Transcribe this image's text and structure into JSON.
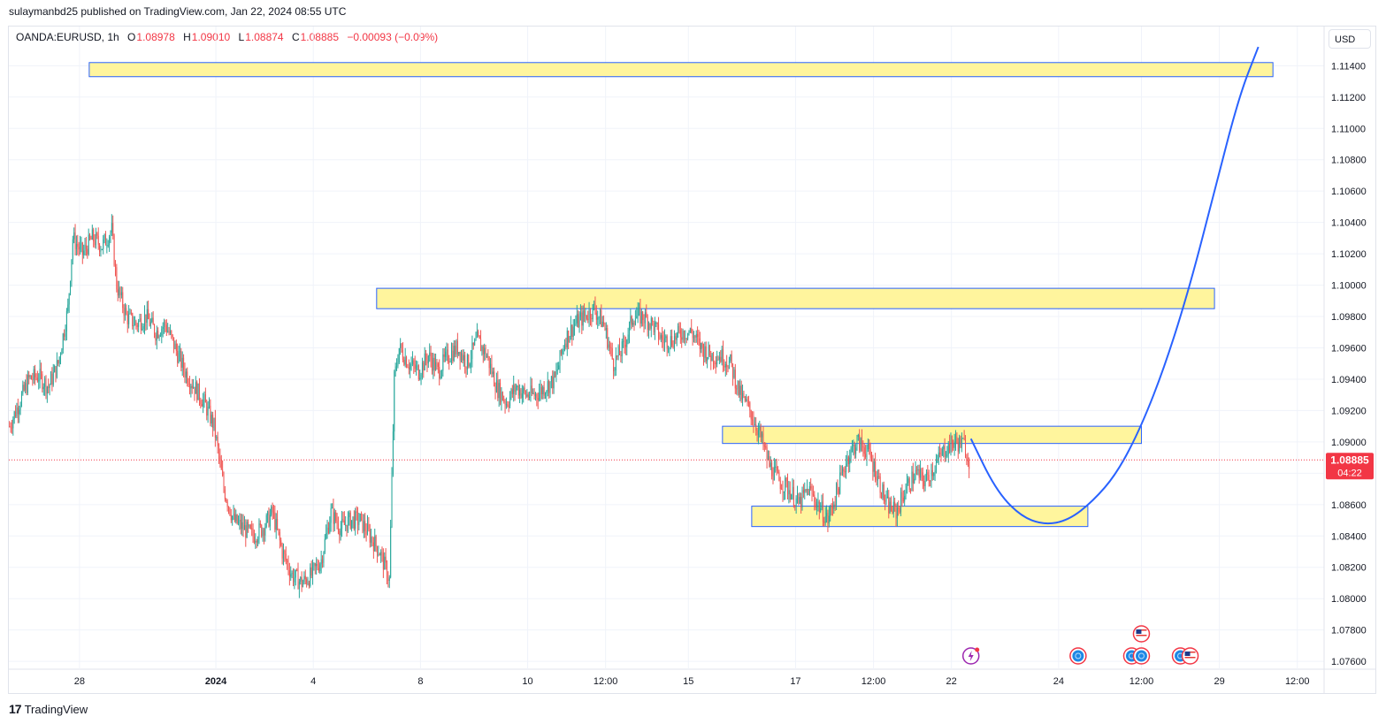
{
  "header": {
    "published": "sulaymanbd25 published on TradingView.com, Jan 22, 2024 08:55 UTC"
  },
  "symbol": {
    "name": "OANDA:EURUSD, 1h",
    "open_label": "O",
    "open": "1.08978",
    "high_label": "H",
    "high": "1.09010",
    "low_label": "L",
    "low": "1.08874",
    "close_label": "C",
    "close": "1.08885",
    "change": "−0.00093 (−0.09%)"
  },
  "currency": "USD",
  "price_tag": {
    "price": "1.08885",
    "countdown": "04:22",
    "color": "#f23645"
  },
  "footer": {
    "brand": "TradingView"
  },
  "colors": {
    "up": "#26a69a",
    "down": "#ef5350",
    "zone_fill": "#fff59d",
    "zone_border": "#2962ff",
    "projection": "#2962ff"
  },
  "chart_data": {
    "type": "candlestick",
    "timeframe": "1h",
    "ylim": [
      1.0755,
      1.1165
    ],
    "y_ticks": [
      "1.11400",
      "1.11200",
      "1.11000",
      "1.10800",
      "1.10600",
      "1.10400",
      "1.10200",
      "1.10000",
      "1.09800",
      "1.09600",
      "1.09400",
      "1.09200",
      "1.09000",
      "1.08800",
      "1.08600",
      "1.08400",
      "1.08200",
      "1.08000",
      "1.07800",
      "1.07600"
    ],
    "x_ticks": [
      {
        "label": "28",
        "i": 14,
        "bold": false
      },
      {
        "label": "2024",
        "i": 42,
        "bold": true
      },
      {
        "label": "4",
        "i": 62,
        "bold": false
      },
      {
        "label": "8",
        "i": 84,
        "bold": false
      },
      {
        "label": "10",
        "i": 106,
        "bold": false
      },
      {
        "label": "12:00",
        "i": 122,
        "bold": false
      },
      {
        "label": "15",
        "i": 139,
        "bold": false
      },
      {
        "label": "17",
        "i": 161,
        "bold": false
      },
      {
        "label": "12:00",
        "i": 177,
        "bold": false
      },
      {
        "label": "22",
        "i": 193,
        "bold": false
      },
      {
        "label": "24",
        "i": 215,
        "bold": false
      },
      {
        "label": "12:00",
        "i": 232,
        "bold": false
      },
      {
        "label": "29",
        "i": 248,
        "bold": false
      },
      {
        "label": "12:00",
        "i": 264,
        "bold": false
      }
    ],
    "close_path": [
      [
        0,
        1.091
      ],
      [
        2,
        1.0925
      ],
      [
        4,
        1.094
      ],
      [
        6,
        1.0942
      ],
      [
        8,
        1.0935
      ],
      [
        10,
        1.095
      ],
      [
        12,
        1.0985
      ],
      [
        13,
        1.103
      ],
      [
        15,
        1.102
      ],
      [
        17,
        1.103
      ],
      [
        19,
        1.1025
      ],
      [
        21,
        1.1035
      ],
      [
        22,
        1.1
      ],
      [
        24,
        1.098
      ],
      [
        26,
        1.0975
      ],
      [
        28,
        1.098
      ],
      [
        30,
        1.097
      ],
      [
        32,
        1.0975
      ],
      [
        34,
        1.096
      ],
      [
        36,
        1.0945
      ],
      [
        38,
        1.0935
      ],
      [
        40,
        1.0925
      ],
      [
        42,
        1.091
      ],
      [
        44,
        1.087
      ],
      [
        46,
        1.085
      ],
      [
        48,
        1.0845
      ],
      [
        50,
        1.084
      ],
      [
        52,
        1.0845
      ],
      [
        54,
        1.0855
      ],
      [
        56,
        1.083
      ],
      [
        58,
        1.0815
      ],
      [
        60,
        1.081
      ],
      [
        62,
        1.0815
      ],
      [
        64,
        1.0825
      ],
      [
        66,
        1.0855
      ],
      [
        68,
        1.0845
      ],
      [
        70,
        1.085
      ],
      [
        72,
        1.085
      ],
      [
        74,
        1.084
      ],
      [
        76,
        1.083
      ],
      [
        78,
        1.0812
      ],
      [
        79,
        1.094
      ],
      [
        80,
        1.096
      ],
      [
        82,
        1.095
      ],
      [
        84,
        1.0945
      ],
      [
        86,
        1.0955
      ],
      [
        88,
        1.0945
      ],
      [
        90,
        1.0955
      ],
      [
        92,
        1.096
      ],
      [
        94,
        1.095
      ],
      [
        96,
        1.0965
      ],
      [
        98,
        1.0955
      ],
      [
        100,
        1.0935
      ],
      [
        102,
        1.0925
      ],
      [
        104,
        1.0935
      ],
      [
        106,
        1.093
      ],
      [
        108,
        1.093
      ],
      [
        110,
        1.0935
      ],
      [
        112,
        1.094
      ],
      [
        114,
        1.0965
      ],
      [
        116,
        1.0975
      ],
      [
        118,
        1.098
      ],
      [
        120,
        1.0985
      ],
      [
        122,
        1.0975
      ],
      [
        124,
        1.095
      ],
      [
        126,
        1.096
      ],
      [
        128,
        1.098
      ],
      [
        130,
        1.098
      ],
      [
        132,
        1.0975
      ],
      [
        134,
        1.0965
      ],
      [
        136,
        1.0965
      ],
      [
        138,
        1.097
      ],
      [
        140,
        1.097
      ],
      [
        142,
        1.096
      ],
      [
        144,
        1.0955
      ],
      [
        146,
        1.0955
      ],
      [
        148,
        1.095
      ],
      [
        150,
        1.093
      ],
      [
        152,
        1.092
      ],
      [
        154,
        1.0905
      ],
      [
        156,
        1.0885
      ],
      [
        158,
        1.0875
      ],
      [
        160,
        1.087
      ],
      [
        162,
        1.086
      ],
      [
        164,
        1.087
      ],
      [
        166,
        1.086
      ],
      [
        168,
        1.085
      ],
      [
        170,
        1.087
      ],
      [
        172,
        1.089
      ],
      [
        174,
        1.09
      ],
      [
        176,
        1.0895
      ],
      [
        178,
        1.088
      ],
      [
        180,
        1.086
      ],
      [
        182,
        1.0855
      ],
      [
        184,
        1.087
      ],
      [
        186,
        1.088
      ],
      [
        188,
        1.0875
      ],
      [
        190,
        1.0885
      ],
      [
        192,
        1.0895
      ],
      [
        194,
        1.09
      ],
      [
        196,
        1.0898
      ],
      [
        197,
        1.08885
      ]
    ],
    "zones": [
      {
        "i0": 16,
        "i1": 259,
        "y0": 1.1133,
        "y1": 1.1142
      },
      {
        "i0": 75,
        "i1": 247,
        "y0": 1.0985,
        "y1": 1.0998
      },
      {
        "i0": 146,
        "i1": 232,
        "y0": 1.0899,
        "y1": 1.091
      },
      {
        "i0": 152,
        "i1": 221,
        "y0": 1.0846,
        "y1": 1.0859
      }
    ],
    "projection": [
      [
        197,
        1.0902
      ],
      [
        202,
        1.087
      ],
      [
        207,
        1.0853
      ],
      [
        212,
        1.0847
      ],
      [
        217,
        1.085
      ],
      [
        222,
        1.0862
      ],
      [
        227,
        1.088
      ],
      [
        232,
        1.091
      ],
      [
        237,
        1.095
      ],
      [
        242,
        1.1
      ],
      [
        247,
        1.106
      ],
      [
        252,
        1.112
      ],
      [
        256,
        1.1152
      ]
    ],
    "last_price": 1.08885
  }
}
